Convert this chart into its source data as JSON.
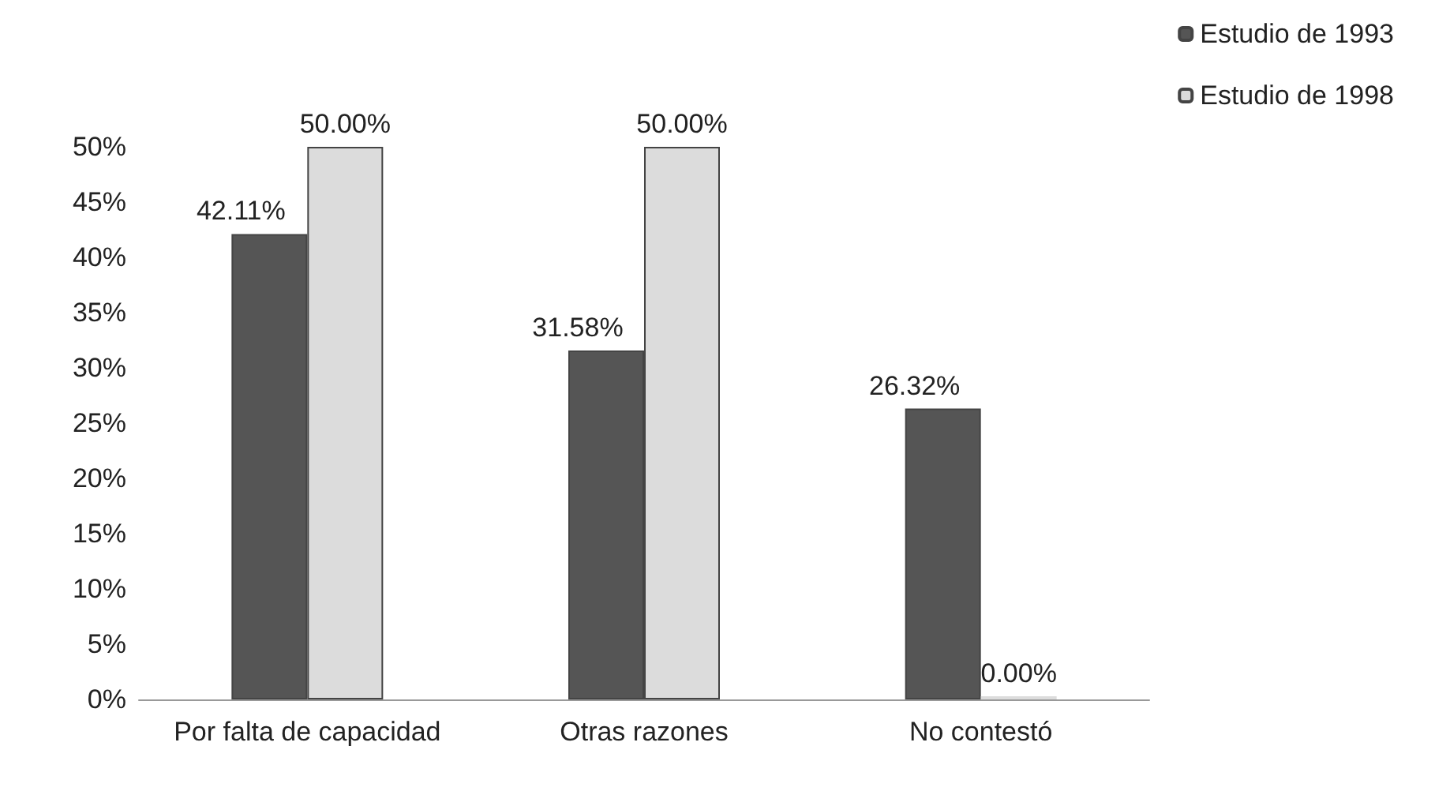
{
  "chart_data": {
    "type": "bar",
    "categories": [
      "Por falta de capacidad",
      "Otras razones",
      "No contestó"
    ],
    "series": [
      {
        "name": "Estudio de 1993",
        "color": "#555555",
        "values": [
          42.11,
          31.58,
          26.32
        ],
        "value_labels": [
          "42.11%",
          "31.58%",
          "26.32%"
        ]
      },
      {
        "name": "Estudio de 1998",
        "color": "#dcdcdc",
        "values": [
          50,
          50,
          0
        ],
        "value_labels": [
          "50.00%",
          "50.00%",
          "0.00%"
        ]
      }
    ],
    "ylim": [
      0,
      50
    ],
    "yticks": [
      {
        "value": 0,
        "label": "0%"
      },
      {
        "value": 5,
        "label": "5%"
      },
      {
        "value": 10,
        "label": "10%"
      },
      {
        "value": 15,
        "label": "15%"
      },
      {
        "value": 20,
        "label": "20%"
      },
      {
        "value": 25,
        "label": "25%"
      },
      {
        "value": 30,
        "label": "30%"
      },
      {
        "value": 35,
        "label": "35%"
      },
      {
        "value": 40,
        "label": "40%"
      },
      {
        "value": 45,
        "label": "45%"
      },
      {
        "value": 50,
        "label": "50%"
      }
    ],
    "grid": false,
    "legend": "top right"
  }
}
